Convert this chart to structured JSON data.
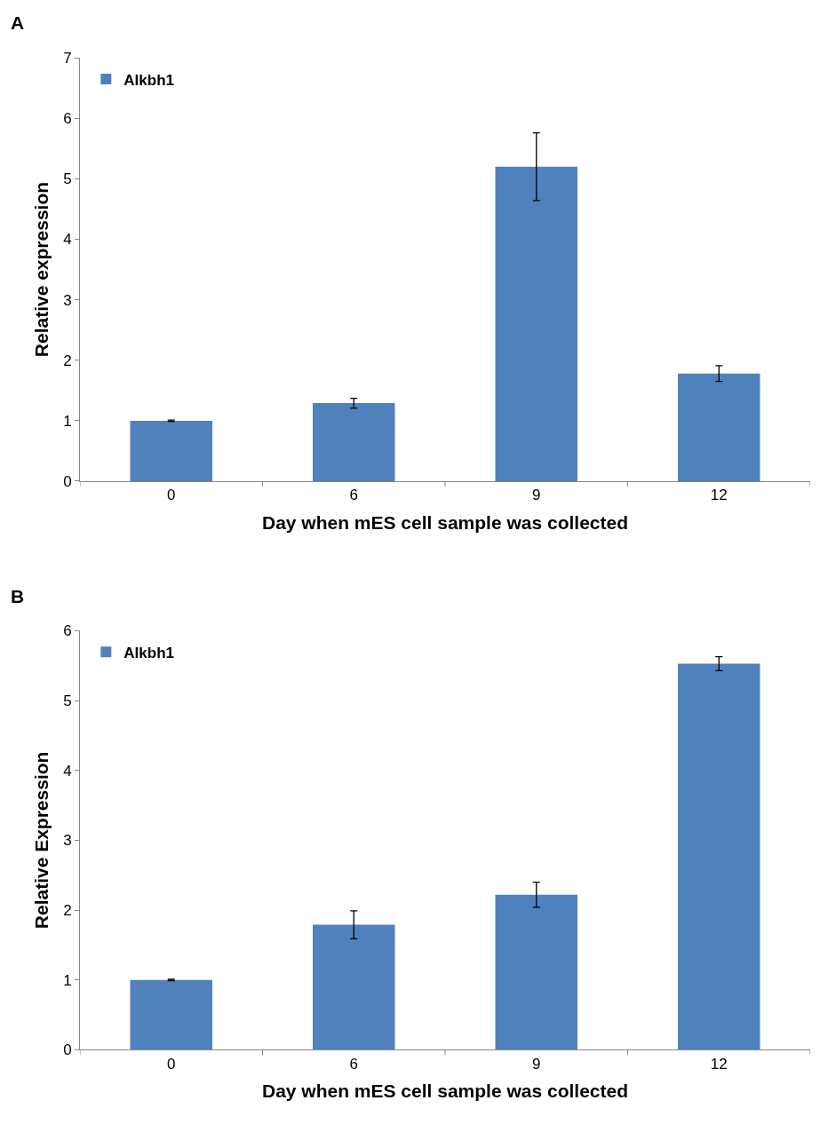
{
  "chart_data": [
    {
      "type": "bar",
      "annotations": [
        "A"
      ],
      "categories": [
        "0",
        "6",
        "9",
        "12"
      ],
      "xlabel": "Day when mES cell sample was collected",
      "ylabel": "Relative expression",
      "ylim": [
        0,
        7
      ],
      "yticks": [
        0,
        1,
        2,
        3,
        4,
        5,
        6,
        7
      ],
      "legend": "top left",
      "series": [
        {
          "name": "Alkbh1",
          "color": "#4f81bd",
          "values": [
            1.0,
            1.29,
            5.2,
            1.78
          ],
          "errors": [
            0.01,
            0.08,
            0.56,
            0.13
          ]
        }
      ]
    },
    {
      "type": "bar",
      "annotations": [
        "B"
      ],
      "categories": [
        "0",
        "6",
        "9",
        "12"
      ],
      "xlabel": "Day when mES cell sample was collected",
      "ylabel": "Relative Expression",
      "ylim": [
        0,
        6
      ],
      "yticks": [
        0,
        1,
        2,
        3,
        4,
        5,
        6
      ],
      "legend": "top left",
      "series": [
        {
          "name": "Alkbh1",
          "color": "#4f81bd",
          "values": [
            1.0,
            1.79,
            2.22,
            5.53
          ],
          "errors": [
            0.01,
            0.2,
            0.18,
            0.1
          ]
        }
      ]
    }
  ]
}
